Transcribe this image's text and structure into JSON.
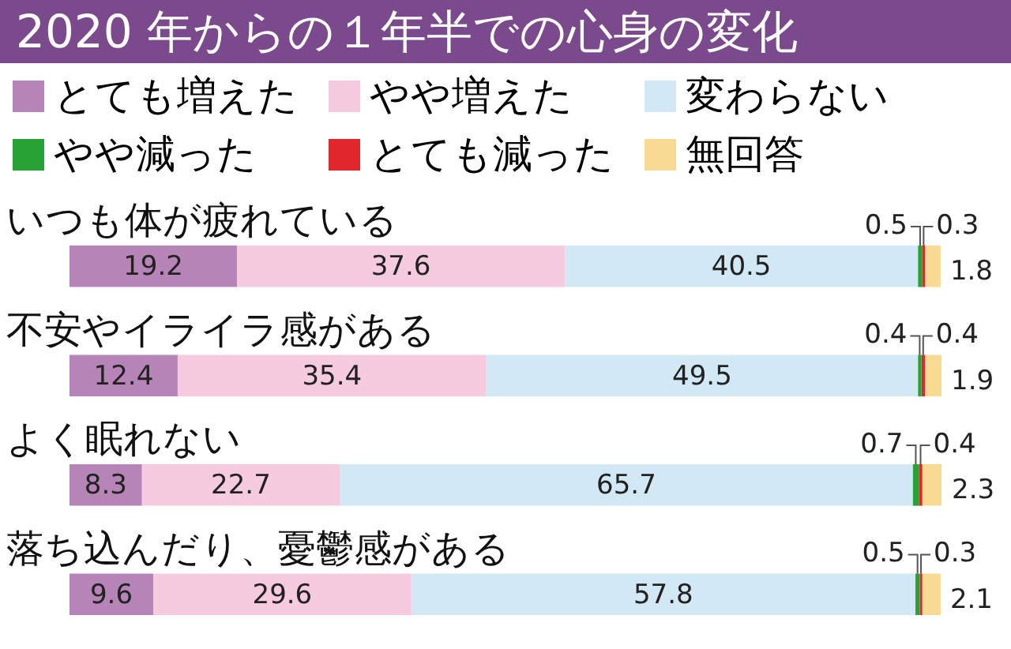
{
  "chart_data": {
    "type": "bar",
    "title": "2020 年からの１年半での心身の変化",
    "orientation": "horizontal",
    "stacked": true,
    "data_labels": true,
    "legend": "top left",
    "tick_labels": false,
    "xlim": [
      0,
      100
    ],
    "categories": [
      "いつも体が疲れている",
      "不安やイライラ感がある",
      "よく眠れない",
      "落ち込んだり、憂鬱感がある"
    ],
    "series": [
      {
        "name": "とても増えた",
        "color": "#b784b8",
        "values": [
          19.2,
          12.4,
          8.3,
          9.6
        ]
      },
      {
        "name": "やや増えた",
        "color": "#f6cbe0",
        "values": [
          37.6,
          35.4,
          22.7,
          29.6
        ]
      },
      {
        "name": "変わらない",
        "color": "#d2e8f4",
        "values": [
          40.5,
          49.5,
          65.7,
          57.8
        ]
      },
      {
        "name": "やや減った",
        "color": "#27a336",
        "values": [
          0.5,
          0.4,
          0.7,
          0.5
        ]
      },
      {
        "name": "とても減った",
        "color": "#e1262c",
        "values": [
          0.3,
          0.4,
          0.4,
          0.3
        ]
      },
      {
        "name": "無回答",
        "color": "#f8da92",
        "values": [
          1.8,
          1.9,
          2.3,
          2.1
        ]
      }
    ]
  }
}
